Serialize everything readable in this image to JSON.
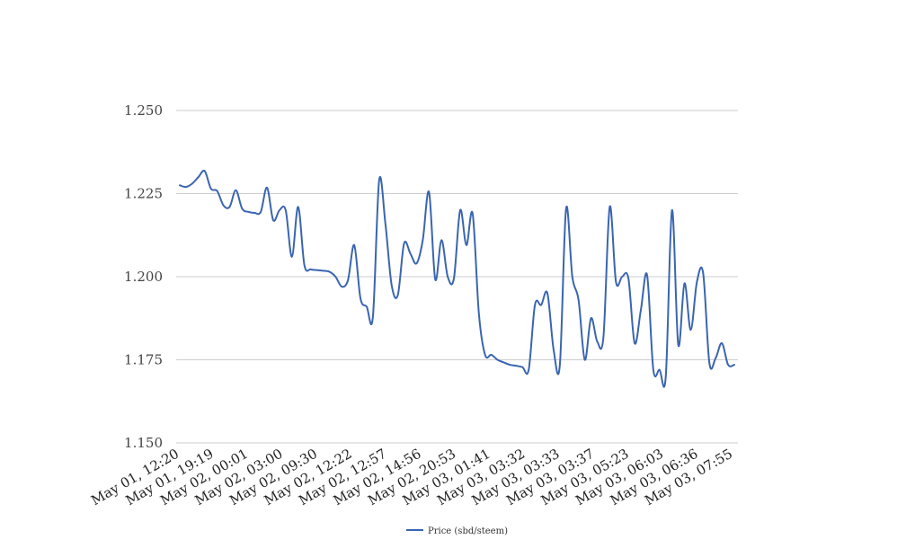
{
  "chart_data": {
    "type": "line",
    "title": "",
    "xlabel": "",
    "ylabel": "",
    "legend_position": "bottom",
    "grid": true,
    "ylim": [
      1.15,
      1.25
    ],
    "yticks": [
      "1.150",
      "1.175",
      "1.200",
      "1.225",
      "1.250"
    ],
    "ytick_values": [
      1.15,
      1.175,
      1.2,
      1.225,
      1.25
    ],
    "xtick_labels": [
      "May 01, 12:20",
      "May 01, 19:19",
      "May 02, 00:01",
      "May 02, 03:00",
      "May 02, 09:30",
      "May 02, 12:22",
      "May 02, 12:57",
      "May 02, 14:56",
      "May 02, 20:53",
      "May 03, 01:41",
      "May 03, 03:32",
      "May 03, 03:33",
      "May 03, 03:37",
      "May 03, 05:23",
      "May 03, 06:03",
      "May 03, 06:36",
      "May 03, 07:55"
    ],
    "series": [
      {
        "name": "Price (sbd/steem)",
        "color": "#3a65b0",
        "values": [
          1.2275,
          1.227,
          1.228,
          1.23,
          1.2318,
          1.2265,
          1.2258,
          1.2215,
          1.221,
          1.226,
          1.2205,
          1.2195,
          1.2192,
          1.2195,
          1.2268,
          1.217,
          1.22,
          1.22,
          1.206,
          1.221,
          1.2035,
          1.2022,
          1.202,
          1.2018,
          1.2015,
          1.2,
          1.197,
          1.199,
          1.2095,
          1.1935,
          1.191,
          1.188,
          1.229,
          1.216,
          1.1975,
          1.1945,
          1.21,
          1.207,
          1.204,
          1.211,
          1.2255,
          1.1992,
          1.211,
          1.2,
          1.1995,
          1.22,
          1.2095,
          1.219,
          1.189,
          1.1765,
          1.1765,
          1.175,
          1.1742,
          1.1735,
          1.1732,
          1.1728,
          1.172,
          1.1915,
          1.1915,
          1.195,
          1.178,
          1.1735,
          1.2205,
          1.2,
          1.193,
          1.175,
          1.1875,
          1.1805,
          1.182,
          1.221,
          1.1985,
          1.2,
          1.1995,
          1.18,
          1.19,
          1.2005,
          1.172,
          1.172,
          1.17,
          1.22,
          1.1795,
          1.198,
          1.184,
          1.1985,
          1.201,
          1.174,
          1.1755,
          1.18,
          1.1735,
          1.1735
        ]
      }
    ]
  }
}
